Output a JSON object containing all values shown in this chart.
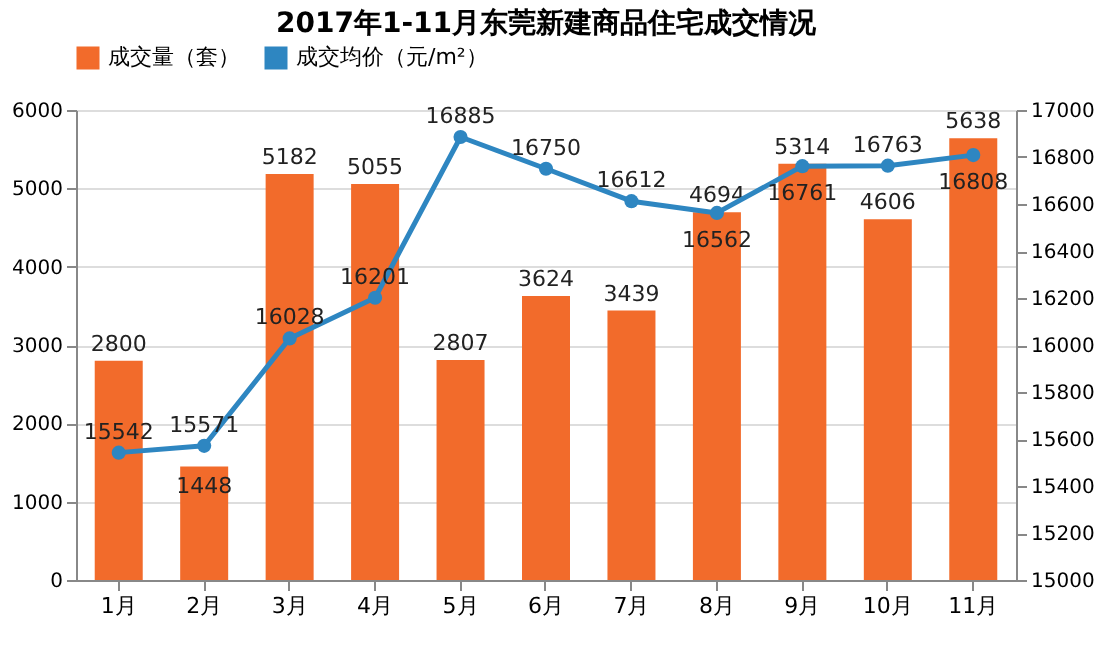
{
  "chart_data": {
    "type": "bar",
    "title": "2017年1-11月东莞新建商品住宅成交情况",
    "categories": [
      "1月",
      "2月",
      "3月",
      "4月",
      "5月",
      "6月",
      "7月",
      "8月",
      "9月",
      "10月",
      "11月"
    ],
    "series": [
      {
        "name": "成交量（套）",
        "color": "#f26b2b",
        "values": [
          2800,
          1448,
          5182,
          5055,
          2807,
          3624,
          3439,
          4694,
          5314,
          4606,
          5638
        ]
      },
      {
        "name": "成交均价（元/m²）",
        "type": "line",
        "axis": "y2",
        "color": "#2e86c1",
        "marker": "circle",
        "values": [
          15542,
          15571,
          16028,
          16201,
          16885,
          16750,
          16612,
          16562,
          16761,
          16763,
          16808
        ]
      }
    ],
    "ylim": [
      0,
      6000
    ],
    "yticks": [
      0,
      1000,
      2000,
      3000,
      4000,
      5000,
      6000
    ],
    "y2lim": [
      15000,
      17000
    ],
    "y2ticks": [
      15000,
      15200,
      15400,
      15600,
      15800,
      16000,
      16200,
      16400,
      16600,
      16800,
      17000
    ],
    "grid": "y",
    "legend": "top",
    "data_labels": true
  }
}
